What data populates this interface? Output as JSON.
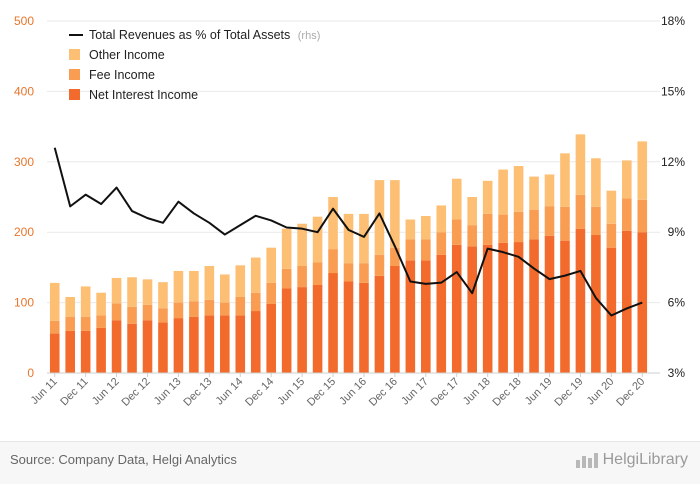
{
  "chart_data": {
    "type": "bar",
    "stacked": true,
    "categories": [
      "Jun 11",
      "Sep 11",
      "Dec 11",
      "Mar 12",
      "Jun 12",
      "Sep 12",
      "Dec 12",
      "Mar 13",
      "Jun 13",
      "Sep 13",
      "Dec 13",
      "Mar 14",
      "Jun 14",
      "Sep 14",
      "Dec 14",
      "Mar 15",
      "Jun 15",
      "Sep 15",
      "Dec 15",
      "Mar 16",
      "Jun 16",
      "Sep 16",
      "Dec 16",
      "Mar 17",
      "Jun 17",
      "Sep 17",
      "Dec 17",
      "Mar 18",
      "Jun 18",
      "Sep 18",
      "Dec 18",
      "Mar 19",
      "Jun 19",
      "Sep 19",
      "Dec 19",
      "Mar 20",
      "Jun 20",
      "Sep 20",
      "Dec 20"
    ],
    "x_tick_labels": [
      "Jun 11",
      "Dec 11",
      "Jun 12",
      "Dec 12",
      "Jun 13",
      "Dec 13",
      "Jun 14",
      "Dec 14",
      "Jun 15",
      "Dec 15",
      "Jun 16",
      "Dec 16",
      "Jun 17",
      "Dec 17",
      "Jun 18",
      "Dec 18",
      "Jun 19",
      "Dec 19",
      "Jun 20",
      "Dec 20"
    ],
    "series": [
      {
        "name": "Net Interest Income",
        "color": "#f26b2c",
        "values": [
          56,
          60,
          60,
          64,
          75,
          70,
          75,
          72,
          78,
          80,
          82,
          82,
          82,
          88,
          98,
          120,
          122,
          125,
          142,
          130,
          128,
          138,
          152,
          160,
          160,
          168,
          182,
          180,
          182,
          185,
          186,
          190,
          195,
          188,
          205,
          196,
          178,
          202,
          200
        ]
      },
      {
        "name": "Fee Income",
        "color": "#f99d52",
        "values": [
          18,
          20,
          20,
          18,
          24,
          24,
          22,
          20,
          22,
          22,
          22,
          18,
          26,
          26,
          30,
          28,
          30,
          32,
          34,
          26,
          28,
          30,
          26,
          30,
          30,
          32,
          36,
          30,
          44,
          40,
          43,
          42,
          42,
          48,
          48,
          40,
          34,
          46,
          46
        ]
      },
      {
        "name": "Other Income",
        "color": "#fcbf74",
        "values": [
          54,
          28,
          43,
          32,
          36,
          42,
          36,
          37,
          45,
          43,
          48,
          40,
          45,
          50,
          50,
          57,
          60,
          65,
          74,
          70,
          70,
          106,
          96,
          28,
          33,
          38,
          58,
          40,
          47,
          64,
          65,
          47,
          45,
          76,
          86,
          69,
          47,
          54,
          83
        ]
      }
    ],
    "line_series": {
      "name": "Total Revenues as % of Total Assets",
      "note": "(rhs)",
      "color": "#111111",
      "values": [
        12.6,
        10.1,
        10.6,
        10.2,
        10.9,
        9.9,
        9.6,
        9.4,
        10.3,
        9.8,
        9.4,
        8.9,
        9.3,
        9.7,
        9.5,
        9.2,
        9.15,
        9.0,
        10.0,
        9.1,
        8.8,
        9.8,
        8.4,
        6.9,
        6.8,
        6.85,
        7.3,
        6.4,
        8.3,
        8.15,
        7.95,
        7.45,
        7.0,
        7.15,
        7.35,
        6.2,
        5.45,
        5.75,
        6.0
      ]
    },
    "y_left": {
      "ylim": [
        0,
        500
      ],
      "ticks": [
        "0",
        "100",
        "200",
        "300",
        "400",
        "500"
      ]
    },
    "y_right": {
      "ylim": [
        3,
        18
      ],
      "ticks": [
        "3%",
        "6%",
        "9%",
        "12%",
        "15%",
        "18%"
      ]
    },
    "grid": true,
    "legend_position": "top-left"
  },
  "footer": {
    "source": "Source: Company Data, Helgi Analytics",
    "brand": "HelgiLibrary"
  }
}
